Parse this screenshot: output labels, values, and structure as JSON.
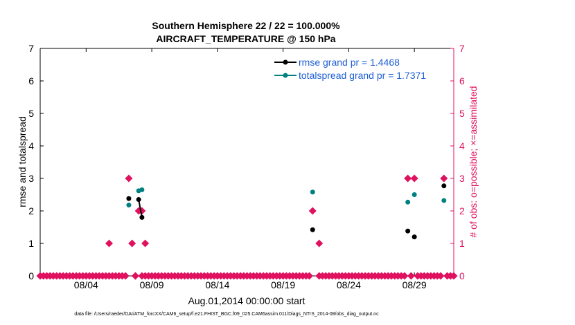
{
  "chart_data": {
    "type": "scatter",
    "title_line1": "Southern Hemisphere 22 / 22 = 100.000%",
    "title_line2": "AIRCRAFT_TEMPERATURE @ 150 hPa",
    "xlabel": "Aug.01,2014 00:00:00 start",
    "ylabel_left": "rmse and totalspread",
    "ylabel_right": "# of obs: o=possible; ×=assimilated",
    "xlim": [
      0,
      31.5
    ],
    "ylim": [
      0,
      7
    ],
    "x_ticks": [
      {
        "x": 3.5,
        "label": "08/04"
      },
      {
        "x": 8.5,
        "label": "08/09"
      },
      {
        "x": 13.5,
        "label": "08/14"
      },
      {
        "x": 18.5,
        "label": "08/19"
      },
      {
        "x": 23.5,
        "label": "08/24"
      },
      {
        "x": 28.5,
        "label": "08/29"
      }
    ],
    "y_ticks": [
      "0",
      "1",
      "2",
      "3",
      "4",
      "5",
      "6",
      "7"
    ],
    "y_right_ticks": [
      "0",
      "1",
      "2",
      "3",
      "4",
      "5",
      "6",
      "7"
    ],
    "colors": {
      "rmse": "#000000",
      "spread": "#008080",
      "obs": "#e0115f",
      "legend_text": "#1f5fd6"
    },
    "legend": [
      {
        "name": "rmse",
        "label": "rmse grand pr = 1.4468"
      },
      {
        "name": "spread",
        "label": "totalspread grand pr = 1.7371"
      }
    ],
    "series": [
      {
        "name": "rmse",
        "points": [
          [
            6.75,
            2.38
          ],
          [
            7.5,
            2.35
          ],
          [
            7.75,
            1.8
          ],
          [
            20.75,
            1.42
          ],
          [
            28.0,
            1.38
          ],
          [
            28.5,
            1.2
          ],
          [
            30.75,
            2.77
          ]
        ],
        "connected_segments": [
          [
            1,
            2
          ]
        ]
      },
      {
        "name": "spread",
        "points": [
          [
            6.75,
            2.18
          ],
          [
            7.5,
            2.62
          ],
          [
            7.75,
            2.65
          ],
          [
            20.75,
            2.58
          ],
          [
            28.0,
            2.27
          ],
          [
            28.5,
            2.5
          ],
          [
            30.75,
            2.32
          ]
        ]
      },
      {
        "name": "obs_count",
        "points": [
          [
            0,
            0
          ],
          [
            0.25,
            0
          ],
          [
            0.5,
            0
          ],
          [
            0.75,
            0
          ],
          [
            1.0,
            0
          ],
          [
            1.25,
            0
          ],
          [
            1.5,
            0
          ],
          [
            1.75,
            0
          ],
          [
            2.0,
            0
          ],
          [
            2.25,
            0
          ],
          [
            2.5,
            0
          ],
          [
            2.75,
            0
          ],
          [
            3.0,
            0
          ],
          [
            3.25,
            0
          ],
          [
            3.5,
            0
          ],
          [
            3.75,
            0
          ],
          [
            4.0,
            0
          ],
          [
            4.25,
            0
          ],
          [
            4.5,
            0
          ],
          [
            4.75,
            0
          ],
          [
            5.0,
            0
          ],
          [
            5.25,
            0
          ],
          [
            5.5,
            0
          ],
          [
            5.75,
            0
          ],
          [
            6.0,
            0
          ],
          [
            6.25,
            0
          ],
          [
            6.5,
            0
          ],
          [
            7.25,
            0
          ],
          [
            7.75,
            0
          ],
          [
            8.0,
            0
          ],
          [
            8.25,
            0
          ],
          [
            8.5,
            0
          ],
          [
            8.75,
            0
          ],
          [
            9.0,
            0
          ],
          [
            9.25,
            0
          ],
          [
            9.5,
            0
          ],
          [
            9.75,
            0
          ],
          [
            10.0,
            0
          ],
          [
            10.25,
            0
          ],
          [
            10.5,
            0
          ],
          [
            10.75,
            0
          ],
          [
            11.0,
            0
          ],
          [
            11.25,
            0
          ],
          [
            11.5,
            0
          ],
          [
            11.75,
            0
          ],
          [
            12.0,
            0
          ],
          [
            12.25,
            0
          ],
          [
            12.5,
            0
          ],
          [
            12.75,
            0
          ],
          [
            13.0,
            0
          ],
          [
            13.25,
            0
          ],
          [
            13.5,
            0
          ],
          [
            13.75,
            0
          ],
          [
            14.0,
            0
          ],
          [
            14.25,
            0
          ],
          [
            14.5,
            0
          ],
          [
            14.75,
            0
          ],
          [
            15.0,
            0
          ],
          [
            15.25,
            0
          ],
          [
            15.5,
            0
          ],
          [
            15.75,
            0
          ],
          [
            16.0,
            0
          ],
          [
            16.25,
            0
          ],
          [
            16.5,
            0
          ],
          [
            16.75,
            0
          ],
          [
            17.0,
            0
          ],
          [
            17.25,
            0
          ],
          [
            17.5,
            0
          ],
          [
            17.75,
            0
          ],
          [
            18.0,
            0
          ],
          [
            18.25,
            0
          ],
          [
            18.5,
            0
          ],
          [
            18.75,
            0
          ],
          [
            19.0,
            0
          ],
          [
            19.25,
            0
          ],
          [
            19.5,
            0
          ],
          [
            19.75,
            0
          ],
          [
            20.0,
            0
          ],
          [
            20.25,
            0
          ],
          [
            20.5,
            0
          ],
          [
            21.25,
            0
          ],
          [
            21.5,
            0
          ],
          [
            21.75,
            0
          ],
          [
            22.0,
            0
          ],
          [
            22.25,
            0
          ],
          [
            22.5,
            0
          ],
          [
            22.75,
            0
          ],
          [
            23.0,
            0
          ],
          [
            23.25,
            0
          ],
          [
            23.5,
            0
          ],
          [
            23.75,
            0
          ],
          [
            24.0,
            0
          ],
          [
            24.25,
            0
          ],
          [
            24.5,
            0
          ],
          [
            24.75,
            0
          ],
          [
            25.0,
            0
          ],
          [
            25.25,
            0
          ],
          [
            25.5,
            0
          ],
          [
            25.75,
            0
          ],
          [
            26.0,
            0
          ],
          [
            26.25,
            0
          ],
          [
            26.5,
            0
          ],
          [
            26.75,
            0
          ],
          [
            27.0,
            0
          ],
          [
            27.25,
            0
          ],
          [
            27.5,
            0
          ],
          [
            27.75,
            0
          ],
          [
            28.25,
            0
          ],
          [
            28.75,
            0
          ],
          [
            29.0,
            0
          ],
          [
            29.25,
            0
          ],
          [
            29.5,
            0
          ],
          [
            29.75,
            0
          ],
          [
            30.0,
            0
          ],
          [
            30.25,
            0
          ],
          [
            30.5,
            0
          ],
          [
            31.0,
            0
          ],
          [
            31.25,
            0
          ],
          [
            31.5,
            0
          ],
          [
            5.25,
            1
          ],
          [
            6.75,
            3
          ],
          [
            7.0,
            1
          ],
          [
            7.25,
            0
          ],
          [
            7.5,
            2
          ],
          [
            7.75,
            2
          ],
          [
            8.0,
            1
          ],
          [
            20.75,
            2
          ],
          [
            21.25,
            1
          ],
          [
            28.0,
            3
          ],
          [
            28.5,
            3
          ],
          [
            30.75,
            3
          ]
        ]
      }
    ]
  },
  "footnote": "data file: /Users/raeder/DAI/ATM_forcXX/CAM6_setup/f.e21.FHIST_BGC.f09_025.CAM6assim.011/Diags_NTrS_2014-08/obs_diag_output.nc"
}
